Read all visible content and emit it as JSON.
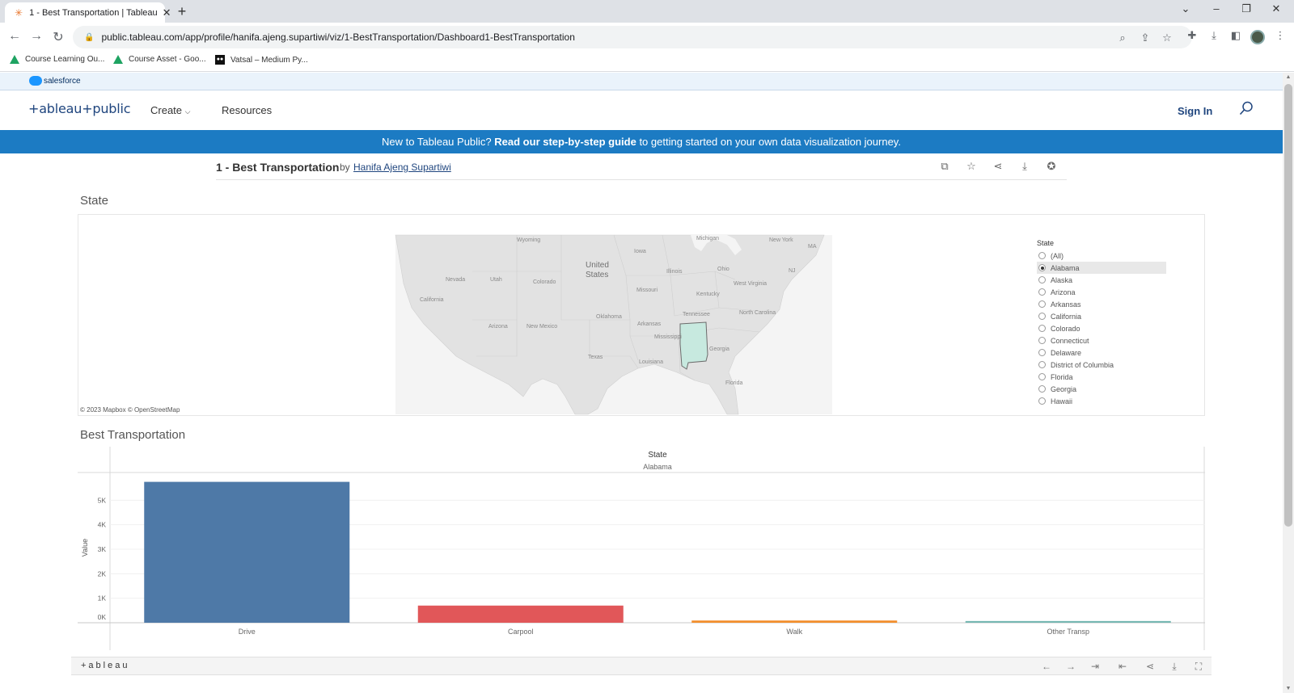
{
  "browser": {
    "tab_title": "1 - Best Transportation | Tableau",
    "url": "public.tableau.com/app/profile/hanifa.ajeng.supartiwi/viz/1-BestTransportation/Dashboard1-BestTransportation",
    "bookmarks": [
      "Course Learning Ou...",
      "Course Asset - Goo...",
      "Vatsal – Medium Py..."
    ]
  },
  "salesforce": {
    "label": "salesforce"
  },
  "header": {
    "logo": "+ableau+public",
    "nav": {
      "create": "Create",
      "resources": "Resources"
    },
    "signin": "Sign In"
  },
  "banner": {
    "prefix": "New to Tableau Public?",
    "link": "Read our step-by-step guide",
    "suffix": "to getting started on your own data visualization journey."
  },
  "viz": {
    "title": "1 - Best Transportation",
    "by": "by",
    "author": "Hanifa Ajeng Supartiwi"
  },
  "map_section": {
    "title": "State",
    "attribution": "© 2023 Mapbox  © OpenStreetMap",
    "labels": [
      "Wyoming",
      "Iowa",
      "Michigan",
      "New York",
      "Nevada",
      "Utah",
      "Colorado",
      "United",
      "States",
      "Illinois",
      "Ohio",
      "California",
      "Missouri",
      "Kentucky",
      "West Virginia",
      "Arizona",
      "New Mexico",
      "Oklahoma",
      "Tennessee",
      "North Carolina",
      "Arkansas",
      "Mississippi",
      "Georgia",
      "Texas",
      "Louisiana",
      "Florida",
      "MA",
      "NJ"
    ],
    "highlight_color": "#c7e9df"
  },
  "filter": {
    "title": "State",
    "options": [
      "(All)",
      "Alabama",
      "Alaska",
      "Arizona",
      "Arkansas",
      "California",
      "Colorado",
      "Connecticut",
      "Delaware",
      "District of Columbia",
      "Florida",
      "Georgia",
      "Hawaii"
    ],
    "selected": "Alabama"
  },
  "chart_section": {
    "title": "Best Transportation"
  },
  "chart_data": {
    "type": "bar",
    "header_label": "State",
    "header_value": "Alabama",
    "categories": [
      "Drive",
      "Carpool",
      "Walk",
      "Other Transp"
    ],
    "values": [
      5750,
      700,
      90,
      70
    ],
    "colors": [
      "#4e79a7",
      "#e15759",
      "#f28e2b",
      "#76b7b2"
    ],
    "ylabel": "Value",
    "yticks": [
      "0K",
      "1K",
      "2K",
      "3K",
      "4K",
      "5K"
    ],
    "ylim": [
      0,
      6000
    ]
  },
  "footer": {
    "logo": "+ableau"
  }
}
